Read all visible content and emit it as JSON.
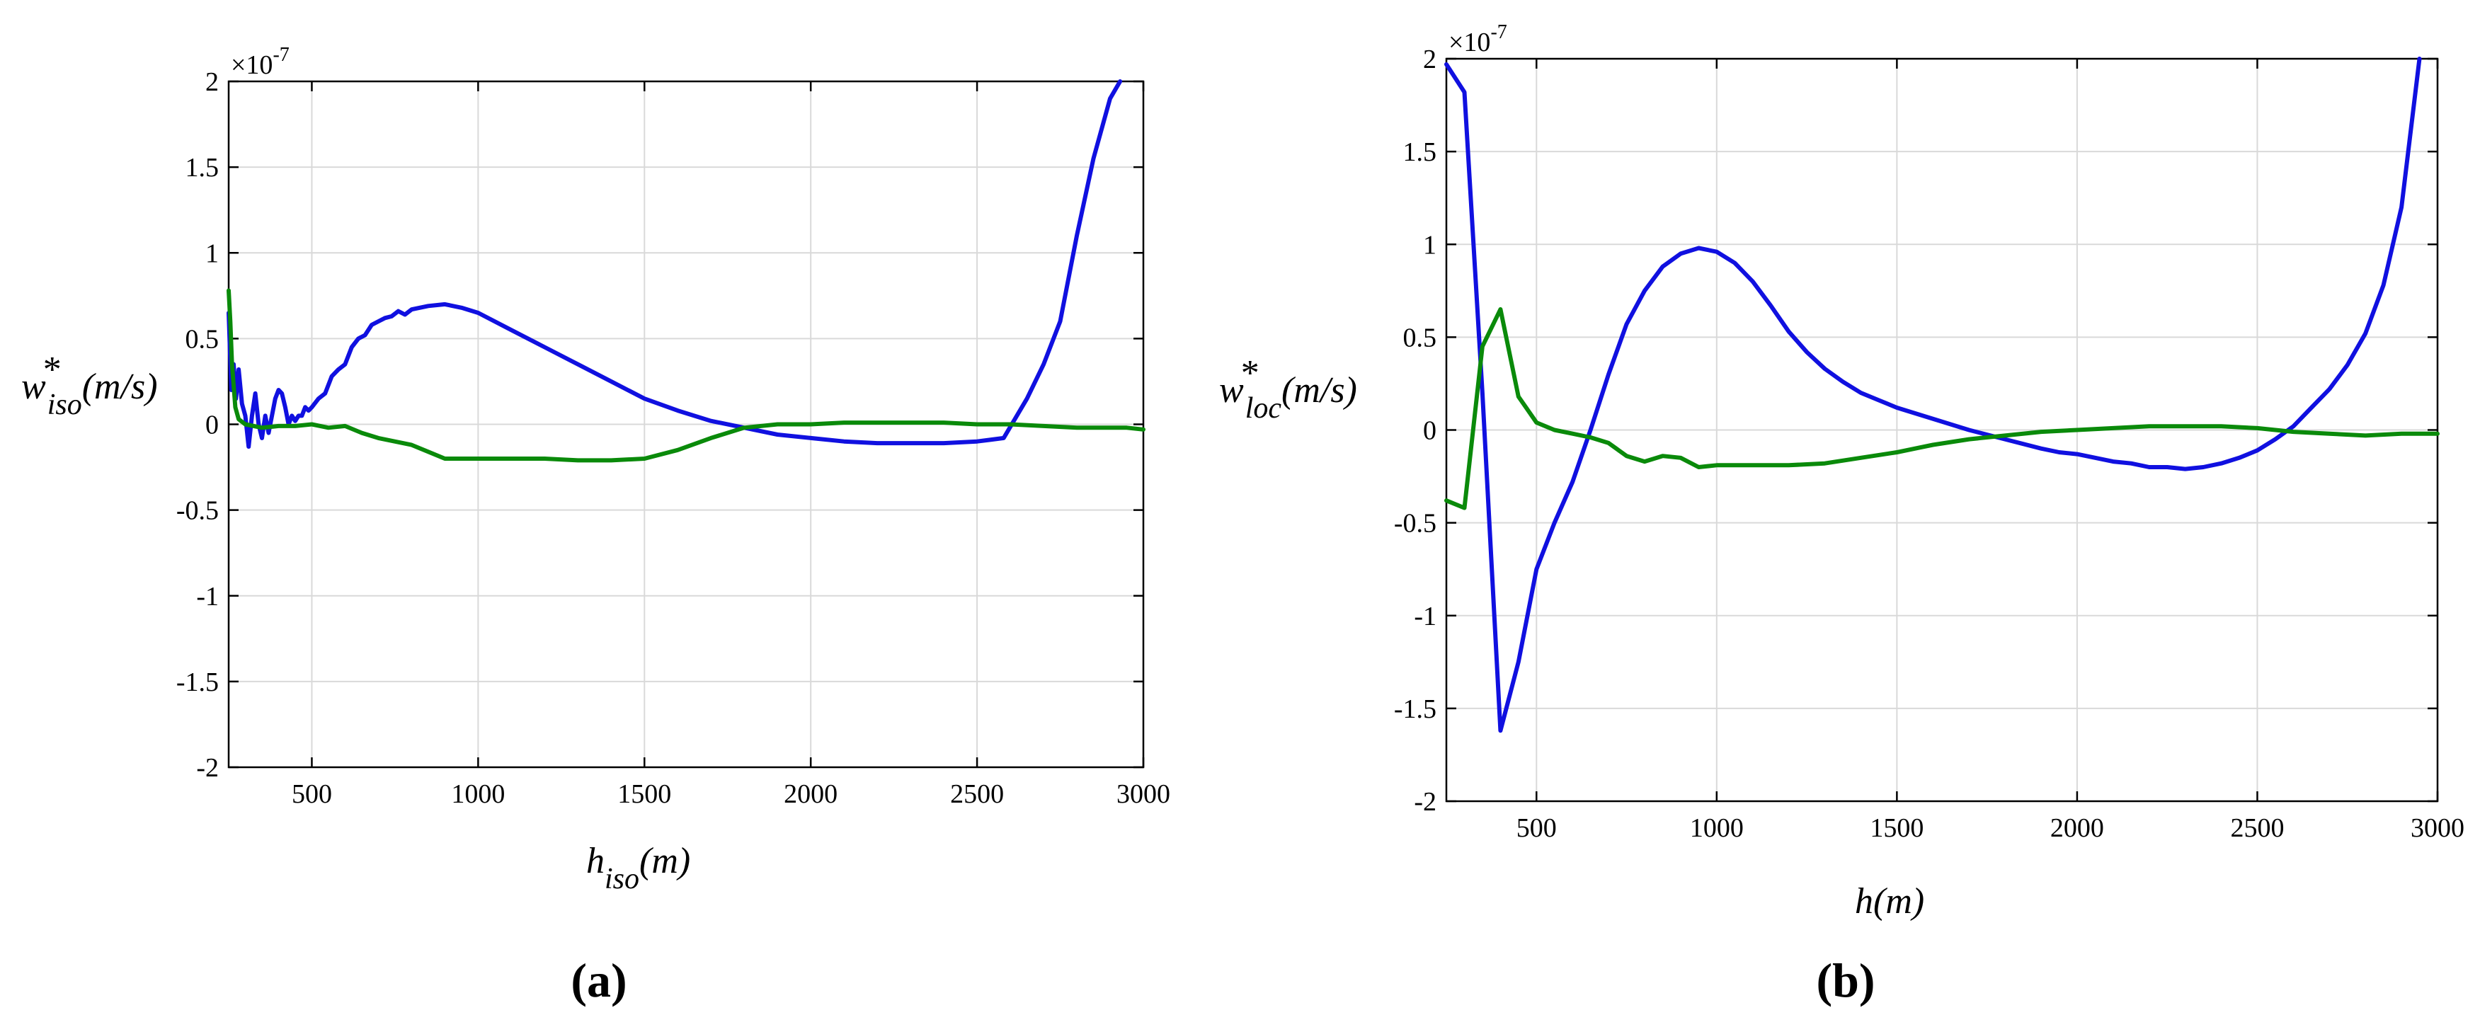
{
  "chart_data": [
    {
      "type": "line",
      "panel_label": "(a)",
      "exponent_label": "×10",
      "exponent_power": "-7",
      "ylabel": {
        "base": "w",
        "sup": "*",
        "sub": "iso",
        "unit": "(m/s)"
      },
      "xlabel": {
        "base": "h",
        "sub": "iso",
        "unit": "(m)"
      },
      "xlim": [
        250,
        3000
      ],
      "ylim": [
        -2,
        2
      ],
      "xticks": [
        500,
        1000,
        1500,
        2000,
        2500,
        3000
      ],
      "yticks": [
        -2,
        -1.5,
        -1,
        -0.5,
        0,
        0.5,
        1,
        1.5,
        2
      ],
      "grid": true,
      "series": [
        {
          "color": "#1010e0",
          "x": [
            250,
            258,
            265,
            272,
            280,
            290,
            300,
            310,
            320,
            330,
            340,
            350,
            360,
            370,
            380,
            390,
            400,
            410,
            420,
            430,
            440,
            450,
            460,
            470,
            480,
            490,
            500,
            520,
            540,
            560,
            580,
            600,
            620,
            640,
            660,
            680,
            700,
            720,
            740,
            760,
            780,
            800,
            850,
            900,
            950,
            1000,
            1100,
            1200,
            1300,
            1400,
            1500,
            1600,
            1700,
            1800,
            1900,
            2000,
            2100,
            2200,
            2300,
            2400,
            2500,
            2580,
            2650,
            2700,
            2750,
            2800,
            2850,
            2900,
            2930
          ],
          "y": [
            0.65,
            0.2,
            0.35,
            0.15,
            0.32,
            0.12,
            0.05,
            -0.13,
            0.05,
            0.18,
            0.0,
            -0.08,
            0.05,
            -0.05,
            0.05,
            0.15,
            0.2,
            0.18,
            0.1,
            0.0,
            0.05,
            0.02,
            0.05,
            0.05,
            0.1,
            0.08,
            0.1,
            0.15,
            0.18,
            0.28,
            0.32,
            0.35,
            0.45,
            0.5,
            0.52,
            0.58,
            0.6,
            0.62,
            0.63,
            0.66,
            0.64,
            0.67,
            0.69,
            0.7,
            0.68,
            0.65,
            0.55,
            0.45,
            0.35,
            0.25,
            0.15,
            0.08,
            0.02,
            -0.02,
            -0.06,
            -0.08,
            -0.1,
            -0.11,
            -0.11,
            -0.11,
            -0.1,
            -0.08,
            0.15,
            0.35,
            0.6,
            1.1,
            1.55,
            1.9,
            2.0
          ]
        },
        {
          "color": "#0a8a0a",
          "x": [
            250,
            255,
            260,
            270,
            280,
            300,
            350,
            400,
            450,
            500,
            550,
            600,
            650,
            700,
            800,
            900,
            1000,
            1100,
            1200,
            1300,
            1400,
            1500,
            1600,
            1700,
            1800,
            1900,
            2000,
            2100,
            2200,
            2300,
            2400,
            2500,
            2600,
            2700,
            2800,
            2900,
            2950,
            3000
          ],
          "y": [
            0.78,
            0.6,
            0.35,
            0.1,
            0.03,
            0.0,
            -0.02,
            -0.01,
            -0.01,
            0.0,
            -0.02,
            -0.01,
            -0.05,
            -0.08,
            -0.12,
            -0.2,
            -0.2,
            -0.2,
            -0.2,
            -0.21,
            -0.21,
            -0.2,
            -0.15,
            -0.08,
            -0.02,
            0.0,
            0.0,
            0.01,
            0.01,
            0.01,
            0.01,
            0.0,
            0.0,
            -0.01,
            -0.02,
            -0.02,
            -0.02,
            -0.03
          ]
        }
      ]
    },
    {
      "type": "line",
      "panel_label": "(b)",
      "exponent_label": "×10",
      "exponent_power": "-7",
      "ylabel": {
        "base": "w",
        "sup": "*",
        "sub": "loc",
        "unit": "(m/s)"
      },
      "xlabel": {
        "base": "h",
        "sub": "",
        "unit": "(m)"
      },
      "xlim": [
        250,
        3000
      ],
      "ylim": [
        -2,
        2
      ],
      "xticks": [
        500,
        1000,
        1500,
        2000,
        2500,
        3000
      ],
      "yticks": [
        -2,
        -1.5,
        -1,
        -0.5,
        0,
        0.5,
        1,
        1.5,
        2
      ],
      "grid": true,
      "series": [
        {
          "color": "#1010e0",
          "x": [
            250,
            300,
            350,
            400,
            450,
            500,
            550,
            600,
            650,
            700,
            750,
            800,
            850,
            900,
            950,
            1000,
            1050,
            1100,
            1150,
            1200,
            1250,
            1300,
            1350,
            1400,
            1450,
            1500,
            1600,
            1700,
            1800,
            1900,
            1950,
            2000,
            2050,
            2100,
            2150,
            2200,
            2250,
            2300,
            2350,
            2400,
            2450,
            2500,
            2550,
            2600,
            2650,
            2700,
            2750,
            2800,
            2850,
            2900,
            2950
          ],
          "y": [
            1.97,
            1.82,
            0.2,
            -1.62,
            -1.25,
            -0.75,
            -0.5,
            -0.28,
            0.0,
            0.3,
            0.57,
            0.75,
            0.88,
            0.95,
            0.98,
            0.96,
            0.9,
            0.8,
            0.67,
            0.53,
            0.42,
            0.33,
            0.26,
            0.2,
            0.16,
            0.12,
            0.06,
            0.0,
            -0.05,
            -0.1,
            -0.12,
            -0.13,
            -0.15,
            -0.17,
            -0.18,
            -0.2,
            -0.2,
            -0.21,
            -0.2,
            -0.18,
            -0.15,
            -0.11,
            -0.05,
            0.02,
            0.12,
            0.22,
            0.35,
            0.52,
            0.78,
            1.2,
            2.0
          ]
        },
        {
          "color": "#0a8a0a",
          "x": [
            250,
            300,
            350,
            400,
            450,
            500,
            550,
            600,
            650,
            700,
            750,
            800,
            850,
            900,
            950,
            1000,
            1100,
            1200,
            1300,
            1400,
            1500,
            1600,
            1700,
            1800,
            1900,
            2000,
            2100,
            2200,
            2300,
            2400,
            2500,
            2600,
            2700,
            2800,
            2900,
            3000
          ],
          "y": [
            -0.38,
            -0.42,
            0.45,
            0.65,
            0.18,
            0.04,
            0.0,
            -0.02,
            -0.04,
            -0.07,
            -0.14,
            -0.17,
            -0.14,
            -0.15,
            -0.2,
            -0.19,
            -0.19,
            -0.19,
            -0.18,
            -0.15,
            -0.12,
            -0.08,
            -0.05,
            -0.03,
            -0.01,
            0.0,
            0.01,
            0.02,
            0.02,
            0.02,
            0.01,
            -0.01,
            -0.02,
            -0.03,
            -0.02,
            -0.02
          ]
        }
      ]
    }
  ]
}
